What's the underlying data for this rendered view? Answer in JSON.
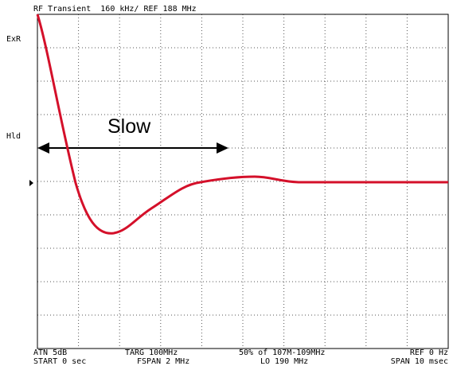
{
  "header": {
    "title": "RF Transient  160 kHz/ REF 188 MHz"
  },
  "left_labels": [
    "ExR",
    "Hld"
  ],
  "annotation": "Slow",
  "footer": {
    "row1": [
      "ATN 5dB",
      "TARG 100MHz",
      "50% of 107M-109MHz",
      "REF 0 Hz"
    ],
    "row2": [
      "START 0 sec",
      "FSPAN 2 MHz",
      "LO 190 MHz",
      "SPAN 10 msec"
    ]
  }
}
